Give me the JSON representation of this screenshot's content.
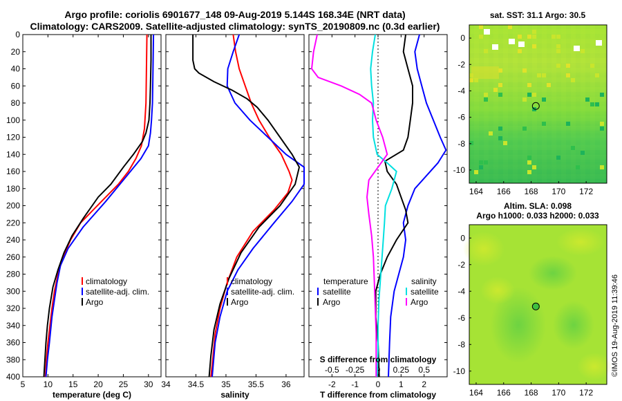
{
  "title": {
    "line1": "Argo profile: coriolis 6901677_148 09-Aug-2019 5.144S 168.34E (NRT data)",
    "line2": "Climatology: CARS2009. Satellite-adjusted climatology: synTS_20190809.nc (0.3d earlier)"
  },
  "colors": {
    "climatology": "#ff0000",
    "satellite": "#0000ff",
    "argo": "#000000",
    "sat_salinity": "#00e0e0",
    "argo_salinity": "#ff00ff"
  },
  "chart_data": [
    {
      "id": "temperature",
      "type": "line",
      "xlabel": "temperature (deg C)",
      "ylabel": "",
      "xlim": [
        5,
        32.5
      ],
      "ylim": [
        400,
        0
      ],
      "xticks": [
        5,
        10,
        15,
        20,
        25,
        30
      ],
      "yticks": [
        0,
        20,
        40,
        60,
        80,
        100,
        120,
        140,
        160,
        180,
        200,
        220,
        240,
        260,
        280,
        300,
        320,
        340,
        360,
        380,
        400
      ],
      "legend": {
        "position": "lower-right",
        "entries": [
          "climatology",
          "satellite-adj. clim.",
          "Argo"
        ]
      },
      "series": [
        {
          "name": "climatology",
          "color": "#ff0000",
          "points": [
            [
              29.7,
              0
            ],
            [
              29.6,
              40
            ],
            [
              29.5,
              80
            ],
            [
              29.2,
              110
            ],
            [
              28.6,
              130
            ],
            [
              27.5,
              145
            ],
            [
              26.0,
              160
            ],
            [
              24.0,
              175
            ],
            [
              21.5,
              190
            ],
            [
              19.0,
              205
            ],
            [
              16.5,
              220
            ],
            [
              14.5,
              240
            ],
            [
              13.0,
              260
            ],
            [
              12.0,
              280
            ],
            [
              11.3,
              300
            ],
            [
              10.8,
              320
            ],
            [
              10.4,
              340
            ],
            [
              10.0,
              360
            ],
            [
              9.7,
              380
            ],
            [
              9.5,
              400
            ]
          ]
        },
        {
          "name": "satellite-adj. clim.",
          "color": "#0000ff",
          "points": [
            [
              31.0,
              0
            ],
            [
              30.9,
              40
            ],
            [
              30.8,
              80
            ],
            [
              30.6,
              100
            ],
            [
              30.4,
              115
            ],
            [
              30.0,
              130
            ],
            [
              28.5,
              145
            ],
            [
              25.0,
              170
            ],
            [
              21.5,
              195
            ],
            [
              17.0,
              225
            ],
            [
              14.0,
              250
            ],
            [
              12.5,
              270
            ],
            [
              11.8,
              290
            ],
            [
              11.3,
              310
            ],
            [
              10.8,
              330
            ],
            [
              10.3,
              360
            ],
            [
              9.9,
              380
            ],
            [
              9.6,
              400
            ]
          ]
        },
        {
          "name": "Argo",
          "color": "#000000",
          "points": [
            [
              30.5,
              0
            ],
            [
              30.5,
              30
            ],
            [
              30.4,
              60
            ],
            [
              30.3,
              80
            ],
            [
              30.1,
              100
            ],
            [
              29.5,
              115
            ],
            [
              28.8,
              125
            ],
            [
              27.0,
              140
            ],
            [
              25.0,
              155
            ],
            [
              22.5,
              175
            ],
            [
              20.0,
              190
            ],
            [
              17.0,
              215
            ],
            [
              14.8,
              235
            ],
            [
              13.2,
              255
            ],
            [
              12.0,
              275
            ],
            [
              11.0,
              295
            ],
            [
              10.3,
              320
            ],
            [
              9.9,
              340
            ],
            [
              9.6,
              360
            ],
            [
              9.4,
              380
            ],
            [
              9.2,
              400
            ]
          ]
        }
      ]
    },
    {
      "id": "salinity",
      "type": "line",
      "xlabel": "salinity",
      "ylabel": "",
      "xlim": [
        34,
        36.3
      ],
      "ylim": [
        400,
        0
      ],
      "xticks": [
        34,
        34.5,
        35,
        35.5,
        36
      ],
      "legend": {
        "position": "lower-right",
        "entries": [
          "climatology",
          "satellite-adj. clim.",
          "Argo"
        ]
      },
      "series": [
        {
          "name": "climatology",
          "color": "#ff0000",
          "points": [
            [
              35.12,
              0
            ],
            [
              35.16,
              20
            ],
            [
              35.22,
              40
            ],
            [
              35.32,
              60
            ],
            [
              35.42,
              80
            ],
            [
              35.55,
              100
            ],
            [
              35.72,
              120
            ],
            [
              35.92,
              140
            ],
            [
              36.05,
              160
            ],
            [
              36.1,
              170
            ],
            [
              36.03,
              185
            ],
            [
              35.8,
              205
            ],
            [
              35.45,
              230
            ],
            [
              35.18,
              260
            ],
            [
              35.02,
              290
            ],
            [
              34.9,
              320
            ],
            [
              34.82,
              350
            ],
            [
              34.78,
              380
            ],
            [
              34.75,
              400
            ]
          ]
        },
        {
          "name": "satellite-adj. clim.",
          "color": "#0000ff",
          "points": [
            [
              35.22,
              0
            ],
            [
              35.12,
              20
            ],
            [
              35.03,
              40
            ],
            [
              35.02,
              60
            ],
            [
              35.15,
              80
            ],
            [
              35.4,
              100
            ],
            [
              35.7,
              120
            ],
            [
              36.0,
              140
            ],
            [
              36.3,
              155
            ],
            [
              36.36,
              160
            ],
            [
              36.3,
              175
            ],
            [
              36.1,
              195
            ],
            [
              35.8,
              220
            ],
            [
              35.45,
              250
            ],
            [
              35.2,
              275
            ],
            [
              35.02,
              300
            ],
            [
              34.9,
              330
            ],
            [
              34.82,
              360
            ],
            [
              34.77,
              400
            ]
          ]
        },
        {
          "name": "Argo",
          "color": "#000000",
          "points": [
            [
              34.45,
              0
            ],
            [
              34.45,
              30
            ],
            [
              34.48,
              40
            ],
            [
              34.55,
              45
            ],
            [
              34.8,
              55
            ],
            [
              35.1,
              65
            ],
            [
              35.35,
              75
            ],
            [
              35.52,
              85
            ],
            [
              35.7,
              100
            ],
            [
              35.9,
              120
            ],
            [
              36.1,
              140
            ],
            [
              36.22,
              155
            ],
            [
              36.15,
              175
            ],
            [
              35.9,
              200
            ],
            [
              35.55,
              225
            ],
            [
              35.25,
              255
            ],
            [
              35.05,
              285
            ],
            [
              34.9,
              315
            ],
            [
              34.8,
              345
            ],
            [
              34.75,
              375
            ],
            [
              34.72,
              400
            ]
          ]
        }
      ]
    },
    {
      "id": "difference",
      "type": "line",
      "xlabel": "T difference from climatology",
      "secondary_xlabel": "S difference from climatology",
      "xlim": [
        -3,
        3
      ],
      "secondary_xlim": [
        -0.75,
        0.75
      ],
      "ylim": [
        400,
        0
      ],
      "xticks": [
        -2,
        -1,
        0,
        1,
        2
      ],
      "secondary_xticks": [
        -0.5,
        -0.25,
        0,
        0.25,
        0.5
      ],
      "secondary_xticklabels": [
        "-0.5",
        "-0.25",
        "0",
        "0.25",
        "0.5"
      ],
      "legend": {
        "temperature_heading": "temperature",
        "salinity_heading": "salinity",
        "temperature_entries": [
          "satellite",
          "Argo"
        ],
        "salinity_entries": [
          "satellite",
          "Argo"
        ]
      },
      "series": [
        {
          "name": "temperature satellite",
          "color": "#0000ff",
          "points": [
            [
              1.8,
              0
            ],
            [
              1.6,
              20
            ],
            [
              1.7,
              40
            ],
            [
              1.9,
              60
            ],
            [
              2.1,
              80
            ],
            [
              2.4,
              100
            ],
            [
              2.7,
              120
            ],
            [
              2.95,
              135
            ],
            [
              2.6,
              150
            ],
            [
              2.1,
              165
            ],
            [
              1.6,
              180
            ],
            [
              1.3,
              200
            ],
            [
              1.1,
              220
            ],
            [
              1.2,
              240
            ],
            [
              1.1,
              260
            ],
            [
              0.9,
              280
            ],
            [
              0.7,
              300
            ],
            [
              0.55,
              330
            ],
            [
              0.5,
              360
            ],
            [
              0.45,
              400
            ]
          ]
        },
        {
          "name": "temperature Argo",
          "color": "#000000",
          "points": [
            [
              1.2,
              0
            ],
            [
              1.1,
              20
            ],
            [
              1.3,
              40
            ],
            [
              1.5,
              60
            ],
            [
              1.5,
              80
            ],
            [
              1.4,
              100
            ],
            [
              1.3,
              120
            ],
            [
              1.1,
              135
            ],
            [
              0.3,
              148
            ],
            [
              0.4,
              160
            ],
            [
              0.8,
              175
            ],
            [
              1.0,
              190
            ],
            [
              1.2,
              205
            ],
            [
              1.3,
              220
            ],
            [
              0.8,
              240
            ],
            [
              0.4,
              260
            ],
            [
              0.1,
              280
            ],
            [
              -0.1,
              300
            ],
            [
              -0.1,
              330
            ],
            [
              0.0,
              360
            ],
            [
              0.05,
              400
            ]
          ]
        },
        {
          "name": "salinity satellite",
          "color": "#00e0e0",
          "points": [
            [
              -0.03,
              0
            ],
            [
              -0.06,
              20
            ],
            [
              -0.08,
              40
            ],
            [
              -0.07,
              60
            ],
            [
              -0.05,
              80
            ],
            [
              -0.06,
              100
            ],
            [
              -0.05,
              120
            ],
            [
              -0.01,
              140
            ],
            [
              0.1,
              150
            ],
            [
              0.2,
              160
            ],
            [
              0.15,
              180
            ],
            [
              0.08,
              200
            ],
            [
              0.07,
              220
            ],
            [
              0.05,
              250
            ],
            [
              0.03,
              280
            ],
            [
              0.01,
              310
            ],
            [
              0.0,
              340
            ],
            [
              0.0,
              370
            ],
            [
              -0.01,
              400
            ]
          ]
        },
        {
          "name": "salinity Argo",
          "color": "#ff00ff",
          "points": [
            [
              -0.66,
              0
            ],
            [
              -0.7,
              20
            ],
            [
              -0.72,
              40
            ],
            [
              -0.65,
              50
            ],
            [
              -0.4,
              60
            ],
            [
              -0.2,
              70
            ],
            [
              -0.07,
              80
            ],
            [
              -0.02,
              100
            ],
            [
              0.05,
              120
            ],
            [
              0.1,
              140
            ],
            [
              0.0,
              155
            ],
            [
              -0.1,
              170
            ],
            [
              -0.12,
              190
            ],
            [
              -0.1,
              210
            ],
            [
              -0.07,
              235
            ],
            [
              -0.05,
              260
            ],
            [
              -0.04,
              290
            ],
            [
              -0.03,
              320
            ],
            [
              -0.02,
              350
            ],
            [
              -0.02,
              400
            ]
          ]
        }
      ]
    },
    {
      "id": "sst-map",
      "type": "heatmap",
      "title": "sat. SST: 31.1 Argo: 30.5",
      "xlim": [
        163.5,
        173.5
      ],
      "ylim": [
        -11,
        1
      ],
      "xticks": [
        164,
        166,
        168,
        170,
        172
      ],
      "yticks": [
        0,
        -2,
        -4,
        -6,
        -8,
        -10
      ],
      "marker": {
        "lon": 168.34,
        "lat": -5.144
      }
    },
    {
      "id": "sla-map",
      "type": "heatmap",
      "title_line1": "Altim. SLA: 0.098",
      "title_line2": "Argo h1000: 0.033 h2000: 0.033",
      "xlim": [
        163.5,
        173.5
      ],
      "ylim": [
        -11,
        1
      ],
      "xticks": [
        164,
        166,
        168,
        170,
        172
      ],
      "yticks": [
        0,
        -2,
        -4,
        -6,
        -8,
        -10
      ],
      "marker": {
        "lon": 168.34,
        "lat": -5.144
      }
    }
  ],
  "credit": "©IMOS 19-Aug-2019 11:39:46"
}
